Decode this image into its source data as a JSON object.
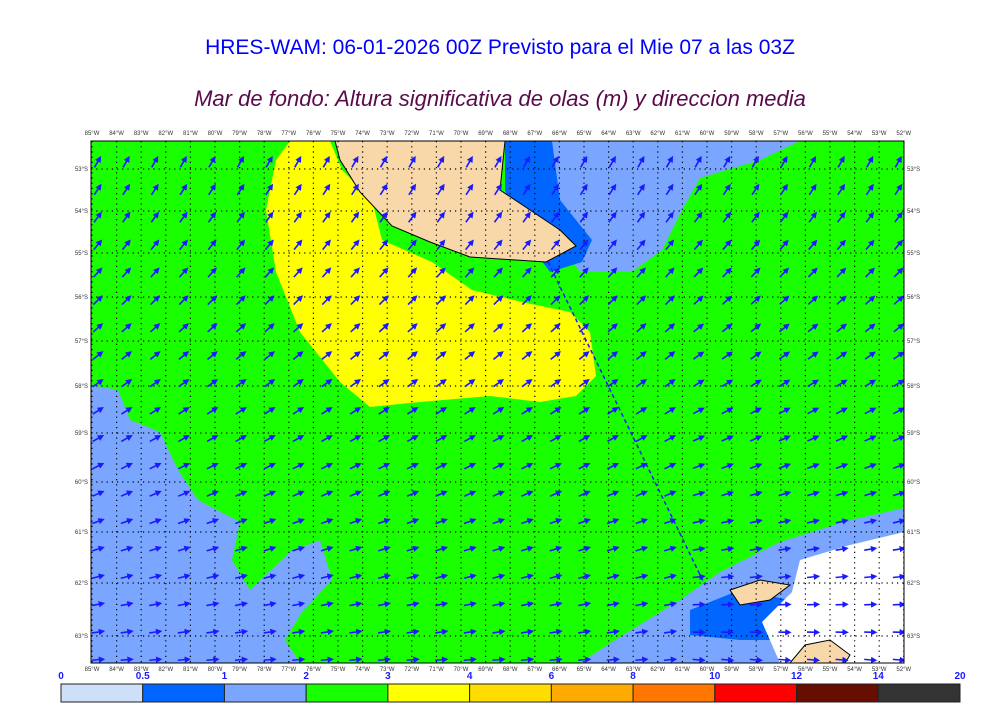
{
  "header": {
    "title": "HRES-WAM: 06-01-2026 00Z Previsto para el Mie 07 a las 03Z",
    "subtitle": "Mar de fondo: Altura significativa de olas (m) y direccion media"
  },
  "map": {
    "lon_labels": [
      "85°W",
      "84°W",
      "83°W",
      "82°W",
      "81°W",
      "80°W",
      "79°W",
      "78°W",
      "77°W",
      "76°W",
      "75°W",
      "74°W",
      "73°W",
      "72°W",
      "71°W",
      "70°W",
      "69°W",
      "68°W",
      "67°W",
      "66°W",
      "65°W",
      "64°W",
      "63°W",
      "62°W",
      "61°W",
      "60°W",
      "59°W",
      "58°W",
      "57°W",
      "56°W",
      "55°W",
      "54°W",
      "53°W",
      "52°W"
    ],
    "lat_labels": [
      "53°S",
      "54°S",
      "55°S",
      "56°S",
      "57°S",
      "58°S",
      "59°S",
      "60°S",
      "61°S",
      "62°S",
      "63°S"
    ],
    "colors": {
      "sea": "#1aff00",
      "low": "#7aa6ff",
      "mid": "#0066ff",
      "lowest": "#cce0ff",
      "swell": "#ffff00",
      "land": "#f8d7a8",
      "ice": "#ffffff",
      "arrow": "#1a1aff"
    }
  },
  "colorbar": {
    "ticks": [
      "0",
      "0.5",
      "1",
      "2",
      "3",
      "4",
      "6",
      "8",
      "10",
      "12",
      "14",
      "20"
    ],
    "colors": [
      "#cce0fa",
      "#0066ff",
      "#7aa6ff",
      "#1aff00",
      "#ffff00",
      "#ffdd00",
      "#ffaa00",
      "#ff7700",
      "#ff0000",
      "#660f00",
      "#333333"
    ]
  }
}
